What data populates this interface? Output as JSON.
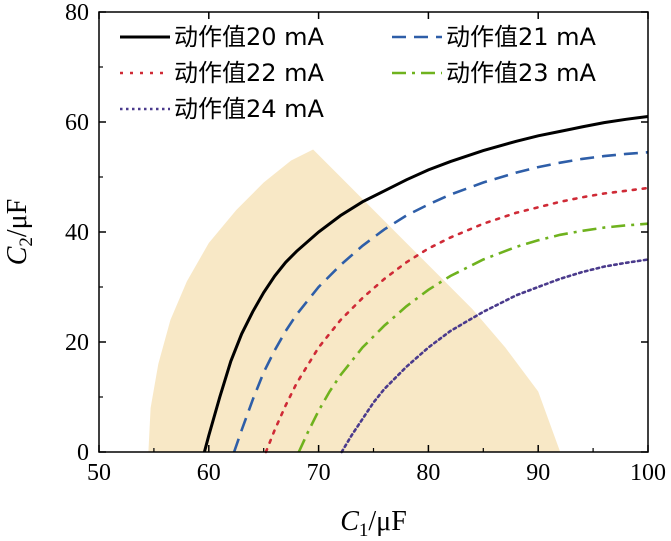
{
  "chart_data": {
    "type": "line",
    "xlabel": {
      "symbol": "C",
      "sub": "1",
      "unit": "/μF"
    },
    "ylabel": {
      "symbol": "C",
      "sub": "2",
      "unit": "/μF"
    },
    "xlim": [
      50,
      100
    ],
    "ylim": [
      0,
      80
    ],
    "xticks": [
      50,
      60,
      70,
      80,
      90,
      100
    ],
    "yticks": [
      0,
      20,
      40,
      60,
      80
    ],
    "xtick_labels": [
      "50",
      "60",
      "70",
      "80",
      "90",
      "100"
    ],
    "ytick_labels": [
      "0",
      "20",
      "40",
      "60",
      "80"
    ],
    "grid": false,
    "legend_position": "top",
    "shaded_region": {
      "color": "#f8e8c6",
      "polygon": [
        [
          54.5,
          0
        ],
        [
          54.7,
          8
        ],
        [
          55.4,
          16
        ],
        [
          56.5,
          24
        ],
        [
          58.0,
          31
        ],
        [
          60.0,
          38
        ],
        [
          62.5,
          44
        ],
        [
          65.0,
          49
        ],
        [
          67.5,
          53
        ],
        [
          69.5,
          55
        ],
        [
          72.0,
          50
        ],
        [
          75.0,
          44
        ],
        [
          78.0,
          38
        ],
        [
          81.0,
          32
        ],
        [
          84.0,
          26
        ],
        [
          87.0,
          19
        ],
        [
          90.0,
          11
        ],
        [
          92.0,
          0
        ]
      ]
    },
    "series": [
      {
        "name": "动作值20 mA",
        "color": "#000000",
        "dash": "solid",
        "x": [
          59.6,
          60.0,
          61.0,
          62.0,
          63.0,
          64.0,
          65.0,
          66.0,
          67.0,
          68.0,
          70.0,
          72.0,
          74.0,
          76.0,
          78.0,
          80.0,
          82.0,
          85.0,
          88.0,
          90.0,
          92.0,
          94.0,
          96.0,
          98.0,
          100.0
        ],
        "y": [
          0,
          3,
          10,
          16.5,
          21.5,
          25.5,
          29,
          32,
          34.5,
          36.5,
          40,
          43,
          45.5,
          47.5,
          49.5,
          51.3,
          52.8,
          54.8,
          56.5,
          57.5,
          58.3,
          59.1,
          59.9,
          60.5,
          61.0
        ]
      },
      {
        "name": "动作值21 mA",
        "color": "#2e5ea8",
        "dash": "dashed",
        "x": [
          62.3,
          63.0,
          64.0,
          65.0,
          66.0,
          67.0,
          68.0,
          70.0,
          72.0,
          74.0,
          76.0,
          78.0,
          80.0,
          82.0,
          85.0,
          88.0,
          90.0,
          92.0,
          94.0,
          96.0,
          98.0,
          100.0
        ],
        "y": [
          0,
          4,
          9.5,
          14.5,
          18.5,
          22,
          25,
          30,
          34,
          37.5,
          40.5,
          43,
          45,
          46.8,
          49,
          50.8,
          51.8,
          52.6,
          53.3,
          53.8,
          54.2,
          54.5
        ]
      },
      {
        "name": "动作值22 mA",
        "color": "#cf2a36",
        "dash": "dotted",
        "x": [
          65.2,
          66.0,
          67.0,
          68.0,
          70.0,
          72.0,
          74.0,
          76.0,
          78.0,
          80.0,
          82.0,
          85.0,
          88.0,
          90.0,
          92.0,
          94.0,
          96.0,
          98.0,
          100.0
        ],
        "y": [
          0,
          4,
          8.5,
          12.5,
          19,
          24,
          28,
          31.5,
          34.5,
          37,
          39,
          41.5,
          43.5,
          44.5,
          45.5,
          46.3,
          47,
          47.5,
          48
        ]
      },
      {
        "name": "动作值23 mA",
        "color": "#6fb21e",
        "dash": "dashdot",
        "x": [
          68.2,
          69.0,
          70.0,
          71.0,
          72.0,
          74.0,
          76.0,
          78.0,
          80.0,
          82.0,
          85.0,
          88.0,
          90.0,
          92.0,
          94.0,
          96.0,
          98.0,
          100.0
        ],
        "y": [
          0,
          3.5,
          7.5,
          11,
          14,
          19,
          23,
          26.5,
          29.5,
          32,
          35,
          37.3,
          38.5,
          39.5,
          40.2,
          40.8,
          41.2,
          41.5
        ]
      },
      {
        "name": "动作值24 mA",
        "color": "#4a3a8c",
        "dash": "densedotted",
        "x": [
          72.1,
          73.0,
          74.0,
          75.0,
          76.0,
          78.0,
          80.0,
          82.0,
          85.0,
          88.0,
          90.0,
          92.0,
          94.0,
          96.0,
          98.0,
          100.0
        ],
        "y": [
          0,
          3,
          6,
          9,
          11.5,
          15.5,
          19,
          22,
          25.5,
          28.5,
          30,
          31.5,
          32.7,
          33.7,
          34.4,
          35
        ]
      }
    ]
  }
}
